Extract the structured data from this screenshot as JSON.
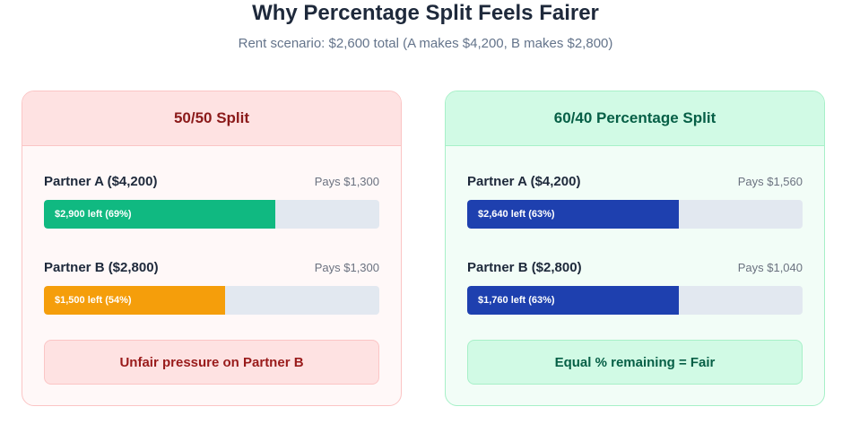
{
  "header": {
    "title": "Why Percentage Split Feels Fairer",
    "subtitle": "Rent scenario: $2,600 total (A makes $4,200, B makes $2,800)"
  },
  "colors": {
    "green_bar": "#10b981",
    "orange_bar": "#f59e0b",
    "blue_bar": "#1e40af",
    "track": "#e2e8f0"
  },
  "cards": [
    {
      "title": "50/50 Split",
      "rows": [
        {
          "name": "Partner A ($4,200)",
          "pays": "Pays $1,300",
          "bar_label": "$2,900 left (69%)",
          "fill_pct": 69,
          "color": "#10b981"
        },
        {
          "name": "Partner B ($2,800)",
          "pays": "Pays $1,300",
          "bar_label": "$1,500 left (54%)",
          "fill_pct": 54,
          "color": "#f59e0b"
        }
      ],
      "verdict": "Unfair pressure on Partner B"
    },
    {
      "title": "60/40 Percentage Split",
      "rows": [
        {
          "name": "Partner A ($4,200)",
          "pays": "Pays $1,560",
          "bar_label": "$2,640 left (63%)",
          "fill_pct": 63,
          "color": "#1e40af"
        },
        {
          "name": "Partner B ($2,800)",
          "pays": "Pays $1,040",
          "bar_label": "$1,760 left (63%)",
          "fill_pct": 63,
          "color": "#1e40af"
        }
      ],
      "verdict": "Equal % remaining = Fair"
    }
  ]
}
